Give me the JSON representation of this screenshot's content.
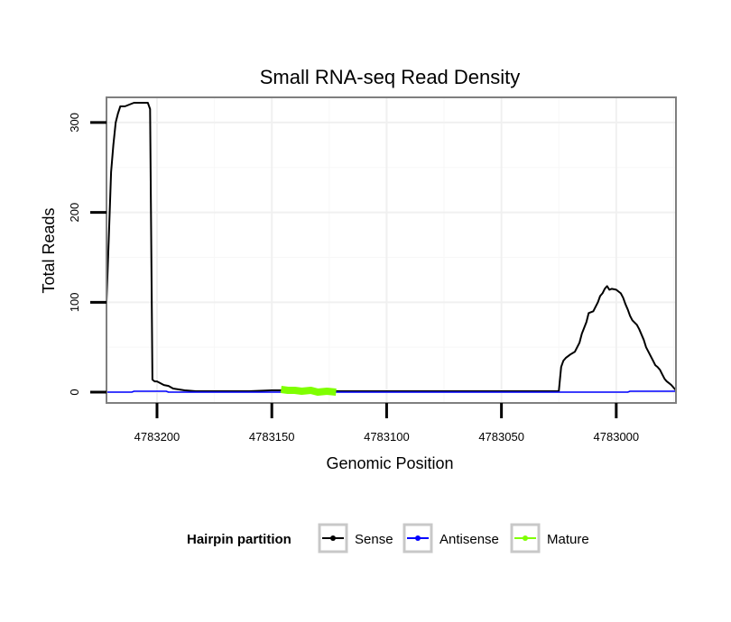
{
  "chart_data": {
    "type": "line",
    "title": "Small RNA-seq Read Density",
    "xlabel": "Genomic Position",
    "ylabel": "Total Reads",
    "x_reversed": true,
    "xlim": [
      4783222,
      4782974
    ],
    "ylim": [
      -12,
      328
    ],
    "x_ticks": [
      4783200,
      4783150,
      4783100,
      4783050,
      4783000
    ],
    "x_tick_labels": [
      "4783200",
      "4783150",
      "4783100",
      "4783050",
      "4783000"
    ],
    "y_ticks": [
      0,
      100,
      200,
      300
    ],
    "y_tick_labels": [
      "0",
      "100",
      "200",
      "300"
    ],
    "grid": true,
    "legend": {
      "title": "Hairpin partition",
      "position": "bottom",
      "entries": [
        {
          "name": "Sense",
          "color": "#000000"
        },
        {
          "name": "Antisense",
          "color": "#0000ff"
        },
        {
          "name": "Mature",
          "color": "#7fff00"
        }
      ]
    },
    "series": [
      {
        "name": "Sense",
        "color": "#000000",
        "x": [
          4783222,
          4783221,
          4783220,
          4783219,
          4783218,
          4783217,
          4783216,
          4783214,
          4783212,
          4783210,
          4783208,
          4783207,
          4783206,
          4783204,
          4783203,
          4783202,
          4783201,
          4783200,
          4783197,
          4783195,
          4783193,
          4783188,
          4783183,
          4783178,
          4783160,
          4783150,
          4783145,
          4783120,
          4783100,
          4783050,
          4783025,
          4783024,
          4783023,
          4783022,
          4783020,
          4783018,
          4783016,
          4783015,
          4783013,
          4783012,
          4783010,
          4783008,
          4783007,
          4783006,
          4783005,
          4783004,
          4783003,
          4783002,
          4783000,
          4782998,
          4782997,
          4782996,
          4782995,
          4782994,
          4782993,
          4782991,
          4782990,
          4782988,
          4782987,
          4782986,
          4782984,
          4782983,
          4782982,
          4782981,
          4782980,
          4782979,
          4782978,
          4782977,
          4782976,
          4782975,
          4782974
        ],
        "values": [
          100,
          170,
          245,
          275,
          300,
          310,
          318,
          318,
          320,
          322,
          322,
          322,
          322,
          322,
          315,
          14,
          12,
          12,
          8,
          7,
          4,
          2,
          1,
          1,
          1,
          2,
          2,
          1,
          1,
          1,
          1,
          28,
          35,
          38,
          42,
          45,
          55,
          65,
          78,
          88,
          90,
          100,
          107,
          110,
          115,
          118,
          114,
          115,
          114,
          110,
          105,
          98,
          92,
          85,
          80,
          75,
          70,
          58,
          50,
          45,
          35,
          30,
          28,
          25,
          20,
          15,
          12,
          10,
          8,
          5,
          2
        ]
      },
      {
        "name": "Antisense",
        "color": "#0000ff",
        "x": [
          4783222,
          4783211,
          4783210,
          4783196,
          4783195,
          4783150,
          4783100,
          4783050,
          4782995,
          4782994,
          4782974
        ],
        "values": [
          0,
          0,
          1,
          1,
          0,
          0,
          0,
          0,
          0,
          1,
          1
        ],
        "linewidth": 1.5
      },
      {
        "name": "Mature",
        "color": "#7fff00",
        "x": [
          4783146,
          4783143,
          4783140,
          4783137,
          4783133,
          4783130,
          4783126,
          4783122
        ],
        "values": [
          3,
          2,
          2,
          1,
          2,
          0,
          1,
          0
        ],
        "linewidth": 8
      }
    ]
  }
}
